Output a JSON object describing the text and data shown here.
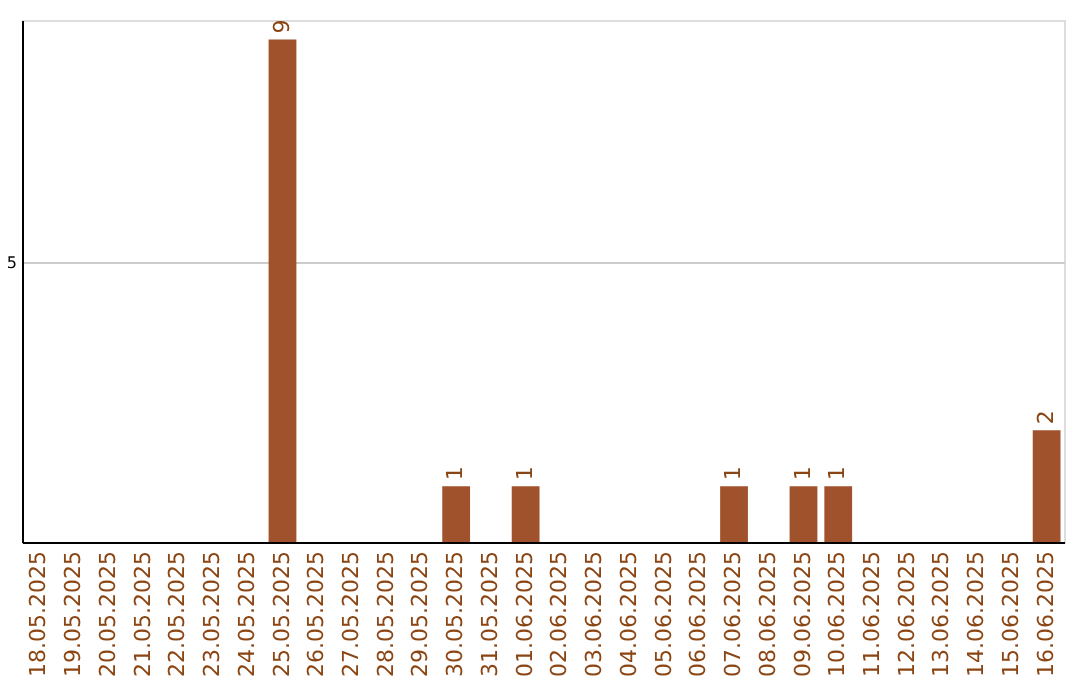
{
  "chart_data": {
    "type": "bar",
    "categories": [
      "18.05.2025",
      "19.05.2025",
      "20.05.2025",
      "21.05.2025",
      "22.05.2025",
      "23.05.2025",
      "24.05.2025",
      "25.05.2025",
      "26.05.2025",
      "27.05.2025",
      "28.05.2025",
      "29.05.2025",
      "30.05.2025",
      "31.05.2025",
      "01.06.2025",
      "02.06.2025",
      "03.06.2025",
      "04.06.2025",
      "05.06.2025",
      "06.06.2025",
      "07.06.2025",
      "08.06.2025",
      "09.06.2025",
      "10.06.2025",
      "11.06.2025",
      "12.06.2025",
      "13.06.2025",
      "14.06.2025",
      "15.06.2025",
      "16.06.2025"
    ],
    "values": [
      0,
      0,
      0,
      0,
      0,
      0,
      0,
      9,
      0,
      0,
      0,
      0,
      1,
      0,
      1,
      0,
      0,
      0,
      0,
      0,
      1,
      0,
      1,
      1,
      0,
      0,
      0,
      0,
      0,
      2
    ],
    "value_labels": [
      null,
      null,
      null,
      null,
      null,
      null,
      null,
      "9",
      null,
      null,
      null,
      null,
      "1",
      null,
      "1",
      null,
      null,
      null,
      null,
      null,
      "1",
      null,
      "1",
      "1",
      null,
      null,
      null,
      null,
      null,
      "2"
    ],
    "color": "#a0522d",
    "ylim": [
      0,
      9.35
    ],
    "yticks": [
      5
    ],
    "grid": "y"
  }
}
